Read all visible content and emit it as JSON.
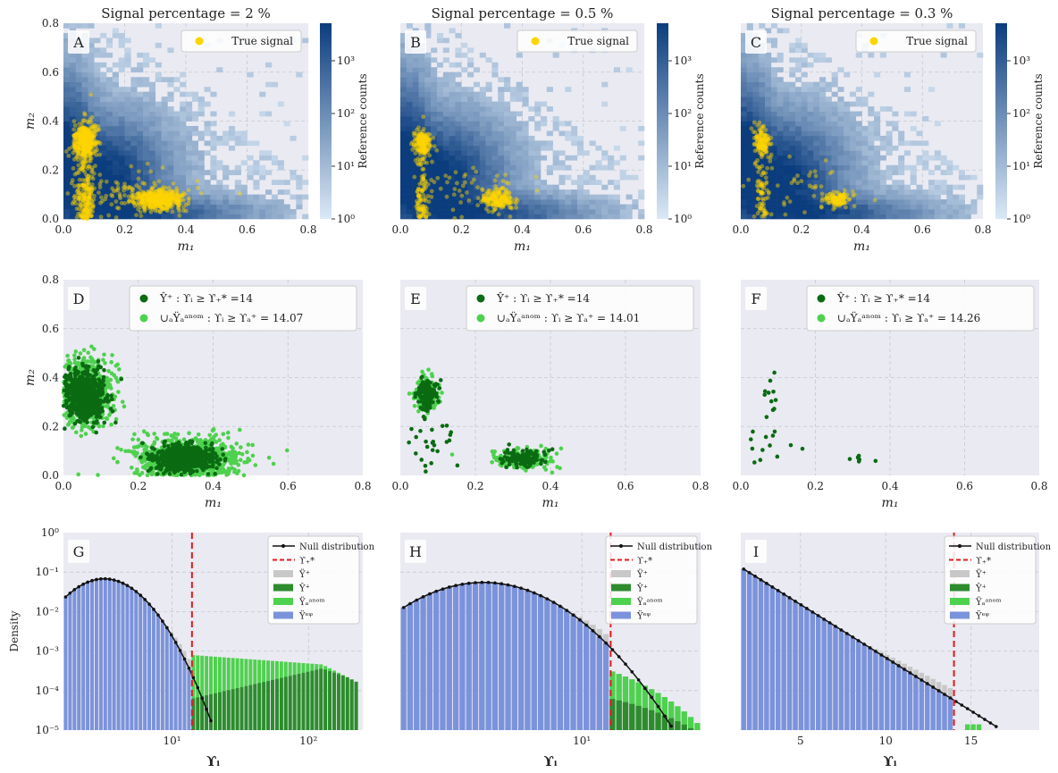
{
  "colors": {
    "panel_bg": "#eaeaf2",
    "grid": "#c8c8d2",
    "signal": "#ffd400",
    "dark_green": "#0a6b12",
    "light_green": "#4ed14e",
    "null_line": "#111111",
    "threshold": "#e41a1c",
    "ref_bar": "#c8c8c8",
    "eq_bar": "#7b93dc",
    "cmap_low": "#dbe9f6",
    "cmap_high": "#0b3d7e"
  },
  "chart_data": [
    {
      "id": "A",
      "type": "heatmap",
      "row": 0,
      "col": 0,
      "title": "Signal percentage = 2 %",
      "letter": "A",
      "xlabel": "m₁",
      "ylabel": "m₂",
      "xlim": [
        0,
        0.8
      ],
      "ylim": [
        0,
        0.8
      ],
      "xticks": [
        "0.0",
        "0.2",
        "0.4",
        "0.6",
        "0.8"
      ],
      "yticks": [
        "0.0",
        "0.2",
        "0.4",
        "0.6",
        "0.8"
      ],
      "legend": [
        "True signal"
      ],
      "colorbar": {
        "label": "Reference counts",
        "scale": "log",
        "ticks": [
          "10⁰",
          "10¹",
          "10²",
          "10³"
        ]
      },
      "signal_clusters": [
        {
          "x": 0.07,
          "y": 0.32,
          "n": 350,
          "sx": 0.018,
          "sy": 0.04
        },
        {
          "x": 0.31,
          "y": 0.08,
          "n": 420,
          "sx": 0.04,
          "sy": 0.02
        },
        {
          "x": 0.07,
          "y": 0.1,
          "n": 220,
          "sx": 0.015,
          "sy": 0.12
        },
        {
          "x": 0.2,
          "y": 0.1,
          "n": 120,
          "sx": 0.12,
          "sy": 0.05
        }
      ]
    },
    {
      "id": "B",
      "type": "heatmap",
      "row": 0,
      "col": 1,
      "title": "Signal percentage = 0.5 %",
      "letter": "B",
      "xlabel": "m₁",
      "ylabel": "",
      "xlim": [
        0,
        0.8
      ],
      "ylim": [
        0,
        0.8
      ],
      "xticks": [
        "0.0",
        "0.2",
        "0.4",
        "0.6",
        "0.8"
      ],
      "legend": [
        "True signal"
      ],
      "colorbar": {
        "label": "Reference counts",
        "scale": "log",
        "ticks": [
          "10⁰",
          "10¹",
          "10²",
          "10³"
        ]
      },
      "signal_clusters": [
        {
          "x": 0.07,
          "y": 0.31,
          "n": 160,
          "sx": 0.015,
          "sy": 0.03
        },
        {
          "x": 0.32,
          "y": 0.08,
          "n": 180,
          "sx": 0.025,
          "sy": 0.02
        },
        {
          "x": 0.07,
          "y": 0.1,
          "n": 90,
          "sx": 0.01,
          "sy": 0.1
        },
        {
          "x": 0.2,
          "y": 0.12,
          "n": 60,
          "sx": 0.1,
          "sy": 0.06
        }
      ]
    },
    {
      "id": "C",
      "type": "heatmap",
      "row": 0,
      "col": 2,
      "title": "Signal percentage = 0.3 %",
      "letter": "C",
      "xlabel": "m₁",
      "ylabel": "",
      "xlim": [
        0,
        0.8
      ],
      "ylim": [
        0,
        0.8
      ],
      "xticks": [
        "0.0",
        "0.2",
        "0.4",
        "0.6",
        "0.8"
      ],
      "legend": [
        "True signal"
      ],
      "colorbar": {
        "label": "Reference counts",
        "scale": "log",
        "ticks": [
          "10⁰",
          "10¹",
          "10²",
          "10³"
        ]
      },
      "signal_clusters": [
        {
          "x": 0.07,
          "y": 0.31,
          "n": 120,
          "sx": 0.012,
          "sy": 0.03
        },
        {
          "x": 0.32,
          "y": 0.08,
          "n": 110,
          "sx": 0.02,
          "sy": 0.015
        },
        {
          "x": 0.07,
          "y": 0.1,
          "n": 70,
          "sx": 0.01,
          "sy": 0.1
        },
        {
          "x": 0.2,
          "y": 0.12,
          "n": 40,
          "sx": 0.1,
          "sy": 0.06
        }
      ]
    },
    {
      "id": "D",
      "type": "scatter",
      "row": 1,
      "col": 0,
      "letter": "D",
      "xlabel": "m₁",
      "ylabel": "m₂",
      "xlim": [
        0,
        0.8
      ],
      "ylim": [
        0,
        0.8
      ],
      "xticks": [
        "0.0",
        "0.2",
        "0.4",
        "0.6",
        "0.8"
      ],
      "yticks": [
        "0.0",
        "0.2",
        "0.4",
        "0.6",
        "0.8"
      ],
      "legend": [
        "Ŷ⁺ :  ϒᵢ ≥ ϒ₊* =14",
        "∪ₐŸₐᵃⁿᵒᵐ :  ϒᵢ ≥ ϒₐ⁺ = 14.07"
      ],
      "light_clusters": [
        {
          "x": 0.06,
          "y": 0.34,
          "n": 700,
          "sx": 0.035,
          "sy": 0.07
        },
        {
          "x": 0.33,
          "y": 0.07,
          "n": 900,
          "sx": 0.07,
          "sy": 0.04
        }
      ],
      "dark_clusters": [
        {
          "x": 0.06,
          "y": 0.33,
          "n": 600,
          "sx": 0.025,
          "sy": 0.05
        },
        {
          "x": 0.32,
          "y": 0.07,
          "n": 700,
          "sx": 0.04,
          "sy": 0.025
        }
      ]
    },
    {
      "id": "E",
      "type": "scatter",
      "row": 1,
      "col": 1,
      "letter": "E",
      "xlabel": "m₁",
      "ylabel": "",
      "xlim": [
        0,
        0.8
      ],
      "ylim": [
        0,
        0.8
      ],
      "xticks": [
        "0.0",
        "0.2",
        "0.4",
        "0.6",
        "0.8"
      ],
      "legend": [
        "Ŷ⁺ :  ϒᵢ ≥ ϒ₊* =14",
        "∪ₐŸₐᵃⁿᵒᵐ :  ϒᵢ ≥ ϒₐ⁺ = 14.01"
      ],
      "light_clusters": [
        {
          "x": 0.07,
          "y": 0.33,
          "n": 140,
          "sx": 0.018,
          "sy": 0.035
        },
        {
          "x": 0.33,
          "y": 0.07,
          "n": 150,
          "sx": 0.04,
          "sy": 0.02
        }
      ],
      "dark_clusters": [
        {
          "x": 0.07,
          "y": 0.33,
          "n": 110,
          "sx": 0.015,
          "sy": 0.03
        },
        {
          "x": 0.33,
          "y": 0.07,
          "n": 120,
          "sx": 0.03,
          "sy": 0.018
        },
        {
          "x": 0.08,
          "y": 0.12,
          "n": 25,
          "sx": 0.03,
          "sy": 0.06
        }
      ]
    },
    {
      "id": "F",
      "type": "scatter",
      "row": 1,
      "col": 2,
      "letter": "F",
      "xlabel": "m₁",
      "ylabel": "",
      "xlim": [
        0,
        0.8
      ],
      "ylim": [
        0,
        0.8
      ],
      "xticks": [
        "0.0",
        "0.2",
        "0.4",
        "0.6",
        "0.8"
      ],
      "legend": [
        "Ŷ⁺ :  ϒᵢ ≥ ϒ₊* =14",
        "∪ₐŸₐᵃⁿᵒᵐ :  ϒᵢ ≥ ϒₐ⁺ = 14.26"
      ],
      "light_clusters": [],
      "dark_clusters": [
        {
          "x": 0.08,
          "y": 0.32,
          "n": 10,
          "sx": 0.01,
          "sy": 0.04
        },
        {
          "x": 0.08,
          "y": 0.13,
          "n": 14,
          "sx": 0.03,
          "sy": 0.05
        },
        {
          "x": 0.32,
          "y": 0.07,
          "n": 8,
          "sx": 0.015,
          "sy": 0.008
        }
      ]
    },
    {
      "id": "G",
      "type": "bar",
      "row": 2,
      "col": 0,
      "letter": "G",
      "xlabel": "ϒᵢ",
      "ylabel": "Density",
      "xscale": "log",
      "xlim": [
        1.6,
        250
      ],
      "ylim_log10": [
        -5,
        0
      ],
      "xticks": [
        {
          "v": 10,
          "label": "10¹"
        },
        {
          "v": 100,
          "label": "10²"
        }
      ],
      "yticks": [
        "10⁻⁵",
        "10⁻⁴",
        "10⁻³",
        "10⁻²",
        "10⁻¹",
        "10⁰"
      ],
      "threshold": 14,
      "legend": [
        "Null distribution",
        "ϒ₊*",
        "Ÿ⁺",
        "Ŷ⁺",
        "Ÿₐᵃⁿᵒᵐ",
        "Ÿᵉᵠ"
      ]
    },
    {
      "id": "H",
      "type": "bar",
      "row": 2,
      "col": 1,
      "letter": "H",
      "xlabel": "ϒᵢ",
      "ylabel": "",
      "xscale": "log",
      "xlim": [
        1.2,
        40
      ],
      "ylim_log10": [
        -5,
        0
      ],
      "xticks": [
        {
          "v": 10,
          "label": "10¹"
        }
      ],
      "threshold": 14,
      "legend": [
        "Null distribution",
        "ϒ₊*",
        "Ÿ⁺",
        "Ŷ⁺",
        "Ÿₐᵃⁿᵒᵐ",
        "Ÿᵉᵠ"
      ]
    },
    {
      "id": "I",
      "type": "bar",
      "row": 2,
      "col": 2,
      "letter": "I",
      "xlabel": "ϒᵢ",
      "ylabel": "",
      "xscale": "linear",
      "xlim": [
        1.5,
        19
      ],
      "ylim_log10": [
        -5,
        0
      ],
      "xticks": [
        {
          "v": 5,
          "label": "5"
        },
        {
          "v": 10,
          "label": "10"
        },
        {
          "v": 15,
          "label": "15"
        }
      ],
      "threshold": 14,
      "legend": [
        "Null distribution",
        "ϒ₊*",
        "Ÿ⁺",
        "Ŷ⁺",
        "Ÿₐᵃⁿᵒᵐ",
        "Ÿᵉᵠ"
      ]
    }
  ]
}
